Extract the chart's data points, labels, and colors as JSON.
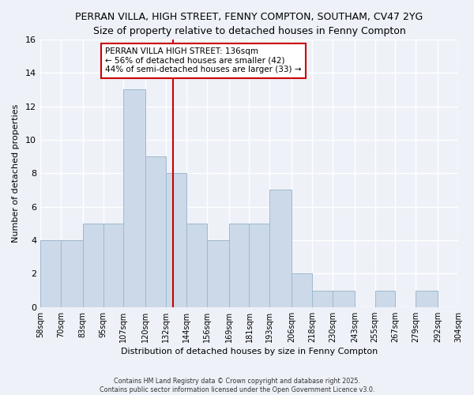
{
  "title": "PERRAN VILLA, HIGH STREET, FENNY COMPTON, SOUTHAM, CV47 2YG",
  "subtitle": "Size of property relative to detached houses in Fenny Compton",
  "xlabel": "Distribution of detached houses by size in Fenny Compton",
  "ylabel": "Number of detached properties",
  "bin_edges": [
    58,
    70,
    83,
    95,
    107,
    120,
    132,
    144,
    156,
    169,
    181,
    193,
    206,
    218,
    230,
    243,
    255,
    267,
    279,
    292,
    304
  ],
  "counts": [
    4,
    4,
    5,
    5,
    13,
    9,
    8,
    5,
    4,
    5,
    5,
    7,
    2,
    1,
    1,
    0,
    1,
    0,
    1,
    0
  ],
  "bar_color": "#ccd9e8",
  "bar_edge_color": "#9eb8d0",
  "vline_x": 136,
  "vline_color": "#cc0000",
  "annotation_text_line1": "PERRAN VILLA HIGH STREET: 136sqm",
  "annotation_text_line2": "← 56% of detached houses are smaller (42)",
  "annotation_text_line3": "44% of semi-detached houses are larger (33) →",
  "ylim": [
    0,
    16
  ],
  "background_color": "#eef2f8",
  "grid_color": "#ffffff",
  "footer_text": "Contains HM Land Registry data © Crown copyright and database right 2025.\nContains public sector information licensed under the Open Government Licence v3.0.",
  "tick_labels": [
    "58sqm",
    "70sqm",
    "83sqm",
    "95sqm",
    "107sqm",
    "120sqm",
    "132sqm",
    "144sqm",
    "156sqm",
    "169sqm",
    "181sqm",
    "193sqm",
    "206sqm",
    "218sqm",
    "230sqm",
    "243sqm",
    "255sqm",
    "267sqm",
    "279sqm",
    "292sqm",
    "304sqm"
  ],
  "title_fontsize": 9,
  "subtitle_fontsize": 8.5,
  "axis_label_fontsize": 8,
  "tick_fontsize": 7,
  "annotation_fontsize": 7.5,
  "footer_fontsize": 5.8
}
